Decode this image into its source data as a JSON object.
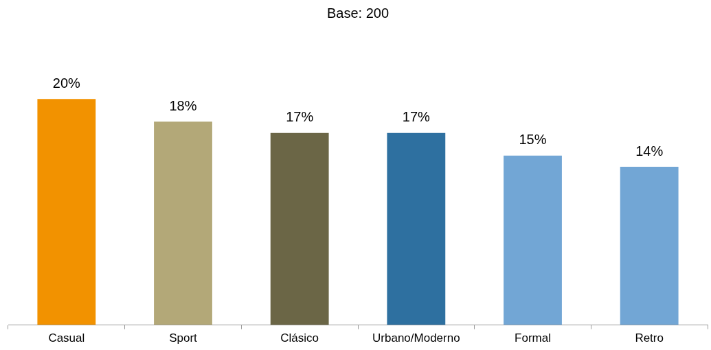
{
  "chart_data": {
    "type": "bar",
    "title": "Base: 200",
    "categories": [
      "Casual",
      "Sport",
      "Clásico",
      "Urbano/Moderno",
      "Formal",
      "Retro"
    ],
    "values": [
      20,
      18,
      17,
      17,
      15,
      14
    ],
    "colors": [
      "#f29200",
      "#b3a878",
      "#6b6646",
      "#2e70a0",
      "#72a6d5",
      "#72a6d5"
    ],
    "value_labels": [
      "20%",
      "18%",
      "17%",
      "17%",
      "15%",
      "14%"
    ],
    "tick_labels": "x",
    "grid": false,
    "legend": false
  }
}
